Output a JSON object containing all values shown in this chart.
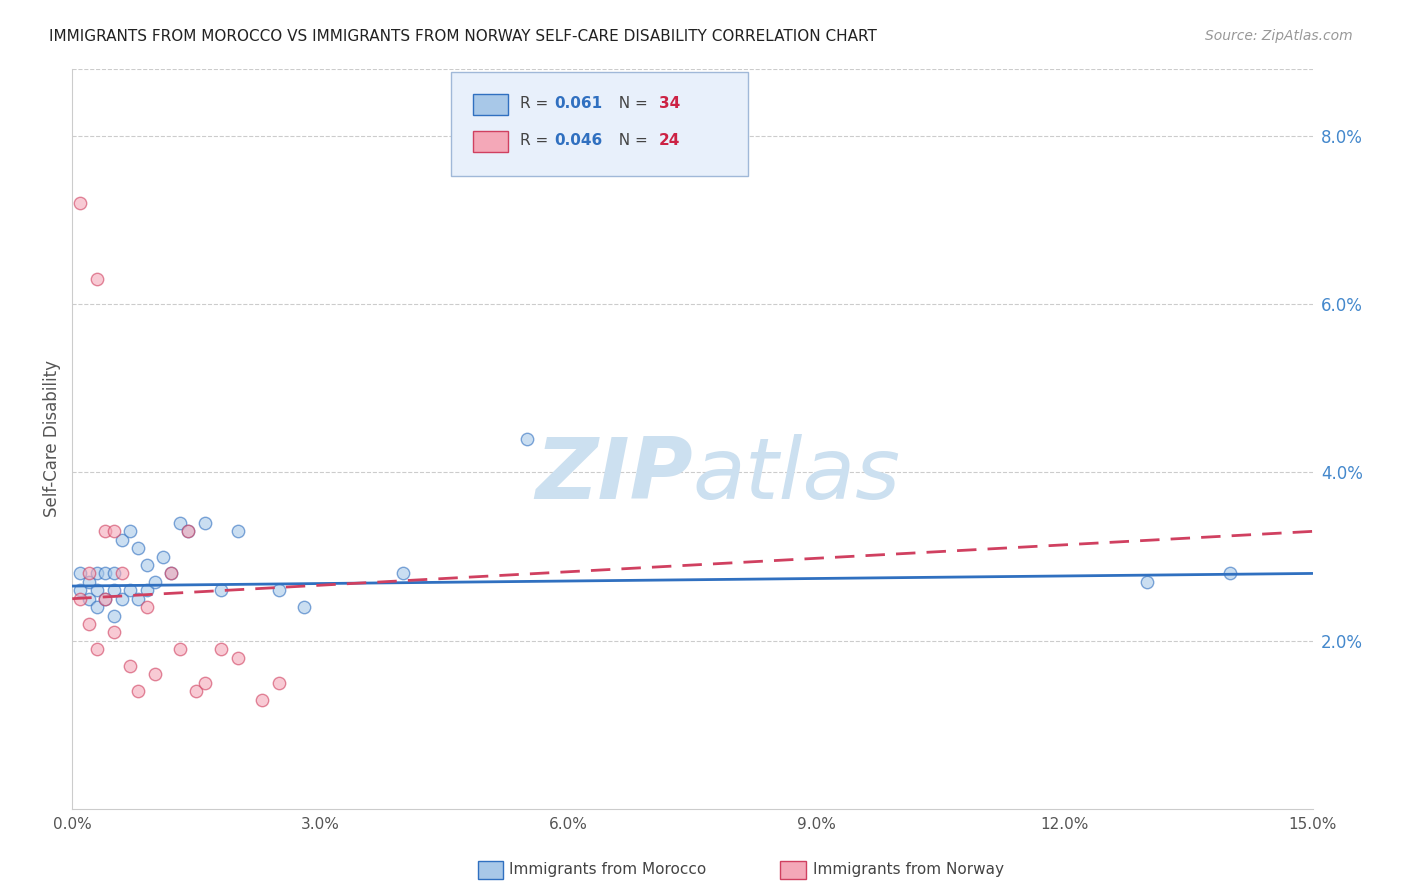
{
  "title": "IMMIGRANTS FROM MOROCCO VS IMMIGRANTS FROM NORWAY SELF-CARE DISABILITY CORRELATION CHART",
  "source": "Source: ZipAtlas.com",
  "ylabel": "Self-Care Disability",
  "xlim": [
    0.0,
    0.15
  ],
  "ylim": [
    0.0,
    0.088
  ],
  "xticks": [
    0.0,
    0.03,
    0.06,
    0.09,
    0.12,
    0.15
  ],
  "yticks_right": [
    0.02,
    0.04,
    0.06,
    0.08
  ],
  "morocco_R": 0.061,
  "morocco_N": 34,
  "norway_R": 0.046,
  "norway_N": 24,
  "morocco_color": "#a8c8e8",
  "norway_color": "#f4a8b8",
  "morocco_line_color": "#3070c0",
  "norway_line_color": "#d04060",
  "background_color": "#ffffff",
  "watermark_color": "#cce0f0",
  "morocco_x": [
    0.001,
    0.001,
    0.002,
    0.002,
    0.003,
    0.003,
    0.003,
    0.004,
    0.004,
    0.005,
    0.005,
    0.005,
    0.006,
    0.006,
    0.007,
    0.007,
    0.008,
    0.008,
    0.009,
    0.009,
    0.01,
    0.011,
    0.012,
    0.013,
    0.014,
    0.016,
    0.018,
    0.02,
    0.025,
    0.028,
    0.04,
    0.055,
    0.13,
    0.14
  ],
  "morocco_y": [
    0.028,
    0.026,
    0.027,
    0.025,
    0.028,
    0.026,
    0.024,
    0.028,
    0.025,
    0.028,
    0.026,
    0.023,
    0.032,
    0.025,
    0.033,
    0.026,
    0.031,
    0.025,
    0.029,
    0.026,
    0.027,
    0.03,
    0.028,
    0.034,
    0.033,
    0.034,
    0.026,
    0.033,
    0.026,
    0.024,
    0.028,
    0.044,
    0.027,
    0.028
  ],
  "norway_x": [
    0.001,
    0.001,
    0.002,
    0.002,
    0.003,
    0.003,
    0.004,
    0.004,
    0.005,
    0.005,
    0.006,
    0.007,
    0.008,
    0.009,
    0.01,
    0.012,
    0.013,
    0.014,
    0.015,
    0.016,
    0.018,
    0.02,
    0.023,
    0.025
  ],
  "norway_y": [
    0.072,
    0.025,
    0.028,
    0.022,
    0.063,
    0.019,
    0.033,
    0.025,
    0.033,
    0.021,
    0.028,
    0.017,
    0.014,
    0.024,
    0.016,
    0.028,
    0.019,
    0.033,
    0.014,
    0.015,
    0.019,
    0.018,
    0.013,
    0.015
  ],
  "morocco_size": 80,
  "norway_size": 80,
  "legend_box_color": "#e8f0fb",
  "legend_box_edge": "#a0b8d8",
  "morocco_trend": [
    0.0265,
    0.028
  ],
  "norway_trend": [
    0.025,
    0.033
  ]
}
